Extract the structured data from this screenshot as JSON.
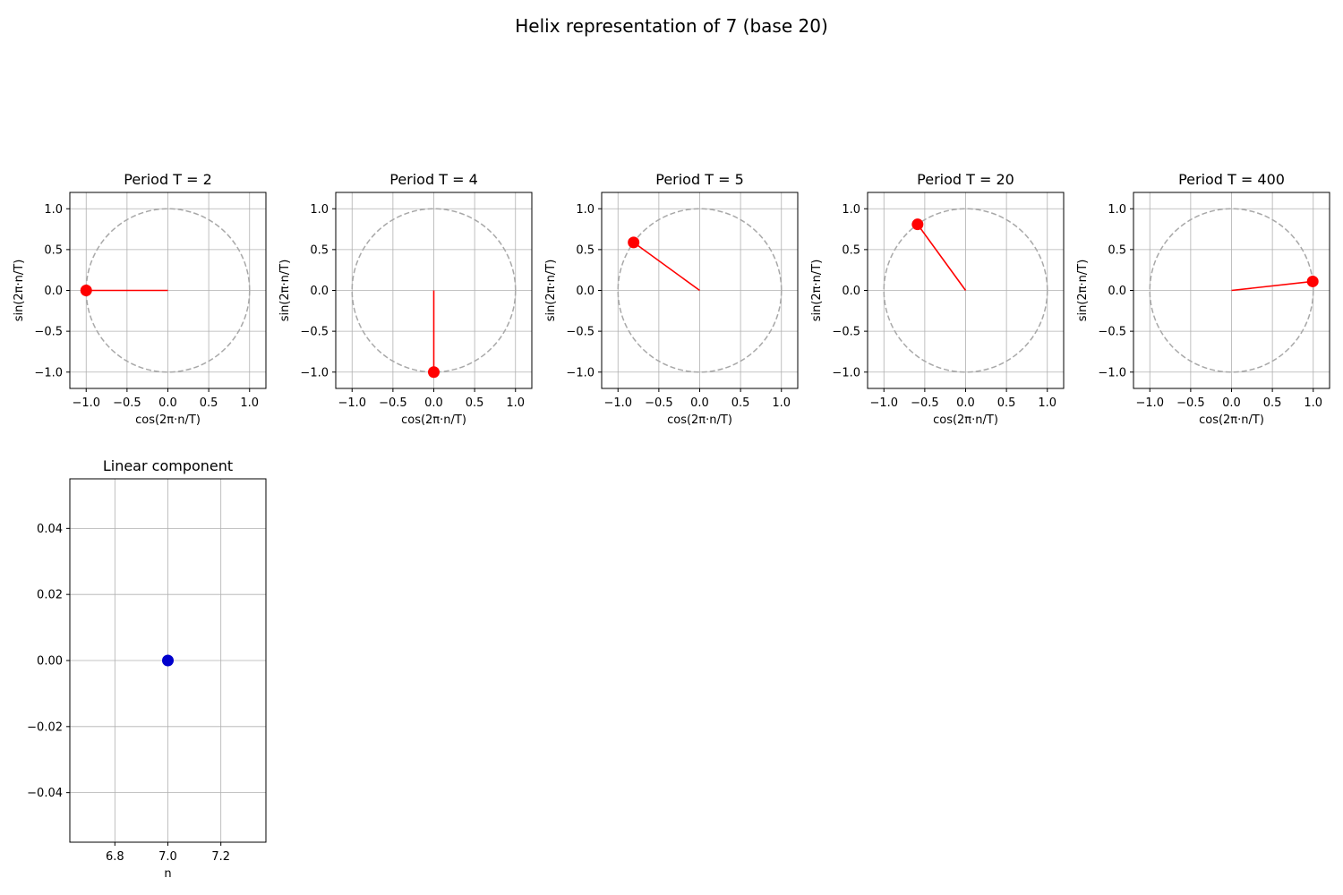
{
  "figure": {
    "title": "Helix representation of 7 (base 20)"
  },
  "chart_data": [
    {
      "type": "scatter",
      "title": "Period T = 2",
      "xlabel": "cos(2π·n/T)",
      "ylabel": "sin(2π·n/T)",
      "xlim": [
        -1.2,
        1.2
      ],
      "ylim": [
        -1.2,
        1.2
      ],
      "xticks": [
        "−1.0",
        "−0.5",
        "0.0",
        "0.5",
        "1.0"
      ],
      "yticks": [
        "−1.0",
        "−0.5",
        "0.0",
        "0.5",
        "1.0"
      ],
      "grid": true,
      "unit_circle": true,
      "point": {
        "x": -1.0,
        "y": 0.0
      },
      "color": "#ff0000"
    },
    {
      "type": "scatter",
      "title": "Period T = 4",
      "xlabel": "cos(2π·n/T)",
      "ylabel": "sin(2π·n/T)",
      "xlim": [
        -1.2,
        1.2
      ],
      "ylim": [
        -1.2,
        1.2
      ],
      "xticks": [
        "−1.0",
        "−0.5",
        "0.0",
        "0.5",
        "1.0"
      ],
      "yticks": [
        "−1.0",
        "−0.5",
        "0.0",
        "0.5",
        "1.0"
      ],
      "grid": true,
      "unit_circle": true,
      "point": {
        "x": 0.0,
        "y": -1.0
      },
      "color": "#ff0000"
    },
    {
      "type": "scatter",
      "title": "Period T = 5",
      "xlabel": "cos(2π·n/T)",
      "ylabel": "sin(2π·n/T)",
      "xlim": [
        -1.2,
        1.2
      ],
      "ylim": [
        -1.2,
        1.2
      ],
      "xticks": [
        "−1.0",
        "−0.5",
        "0.0",
        "0.5",
        "1.0"
      ],
      "yticks": [
        "−1.0",
        "−0.5",
        "0.0",
        "0.5",
        "1.0"
      ],
      "grid": true,
      "unit_circle": true,
      "point": {
        "x": -0.809,
        "y": 0.588
      },
      "color": "#ff0000"
    },
    {
      "type": "scatter",
      "title": "Period T = 20",
      "xlabel": "cos(2π·n/T)",
      "ylabel": "sin(2π·n/T)",
      "xlim": [
        -1.2,
        1.2
      ],
      "ylim": [
        -1.2,
        1.2
      ],
      "xticks": [
        "−1.0",
        "−0.5",
        "0.0",
        "0.5",
        "1.0"
      ],
      "yticks": [
        "−1.0",
        "−0.5",
        "0.0",
        "0.5",
        "1.0"
      ],
      "grid": true,
      "unit_circle": true,
      "point": {
        "x": -0.588,
        "y": 0.809
      },
      "color": "#ff0000"
    },
    {
      "type": "scatter",
      "title": "Period T = 400",
      "xlabel": "cos(2π·n/T)",
      "ylabel": "sin(2π·n/T)",
      "xlim": [
        -1.2,
        1.2
      ],
      "ylim": [
        -1.2,
        1.2
      ],
      "xticks": [
        "−1.0",
        "−0.5",
        "0.0",
        "0.5",
        "1.0"
      ],
      "yticks": [
        "−1.0",
        "−0.5",
        "0.0",
        "0.5",
        "1.0"
      ],
      "grid": true,
      "unit_circle": true,
      "point": {
        "x": 0.994,
        "y": 0.11
      },
      "color": "#ff0000"
    },
    {
      "type": "scatter",
      "title": "Linear component",
      "xlabel": "n",
      "ylabel": "",
      "xlim": [
        6.63,
        7.37
      ],
      "ylim": [
        -0.055,
        0.055
      ],
      "xticks": [
        "6.8",
        "7.0",
        "7.2"
      ],
      "xtick_values": [
        6.8,
        7.0,
        7.2
      ],
      "yticks": [
        "−0.04",
        "−0.02",
        "0.00",
        "0.02",
        "0.04"
      ],
      "ytick_values": [
        -0.04,
        -0.02,
        0.0,
        0.02,
        0.04
      ],
      "grid": true,
      "unit_circle": false,
      "point": {
        "x": 7.0,
        "y": 0.0
      },
      "color": "#0000cc"
    }
  ]
}
